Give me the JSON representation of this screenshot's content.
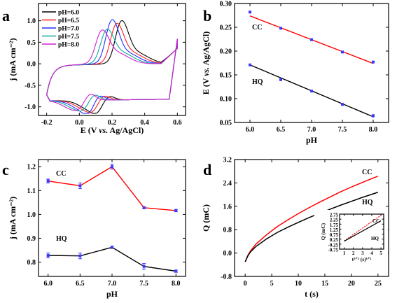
{
  "chart_data": [
    {
      "panel": "a",
      "type": "line",
      "xlabel_parts": [
        "E (V ",
        "vs.",
        " Ag/AgCl)"
      ],
      "ylabel": "j (mA cm⁻²)",
      "xlim": [
        -0.25,
        0.65
      ],
      "ylim": [
        -1.2,
        1.4
      ],
      "xticks": [
        -0.2,
        0.0,
        0.2,
        0.4,
        0.6
      ],
      "yticks": [
        -1.0,
        -0.5,
        0.0,
        0.5,
        1.0
      ],
      "xtick_labels": [
        "-0.2",
        "0.0",
        "0.2",
        "0.4",
        "0.6"
      ],
      "ytick_labels": [
        "-1.0",
        "-0.5",
        "0.0",
        "0.5",
        "1.0"
      ],
      "legend_position": "top-left",
      "grid": false,
      "series": [
        {
          "name": "pH=6.0",
          "color": "#000000",
          "anodic_peaks": [
            [
              0.275,
              1.16
            ],
            [
              0.24,
              1.08
            ]
          ],
          "cathodic_peaks": [
            [
              0.175,
              -0.66
            ],
            [
              0.11,
              -0.95
            ]
          ]
        },
        {
          "name": "pH=6.5",
          "color": "#ff2020",
          "anodic_peaks": [
            [
              0.245,
              1.12
            ],
            [
              0.21,
              1.04
            ]
          ],
          "cathodic_peaks": [
            [
              0.145,
              -0.64
            ],
            [
              0.085,
              -0.92
            ]
          ]
        },
        {
          "name": "pH=7.0",
          "color": "#2030ff",
          "anodic_peaks": [
            [
              0.215,
              1.2
            ],
            [
              0.18,
              1.06
            ]
          ],
          "cathodic_peaks": [
            [
              0.115,
              -0.62
            ],
            [
              0.06,
              -0.98
            ]
          ]
        },
        {
          "name": "pH=7.5",
          "color": "#13a89e",
          "anodic_peaks": [
            [
              0.185,
              1.03
            ],
            [
              0.15,
              0.96
            ]
          ],
          "cathodic_peaks": [
            [
              0.085,
              -0.6
            ],
            [
              0.035,
              -0.88
            ]
          ]
        },
        {
          "name": "pH=8.0",
          "color": "#d020d0",
          "anodic_peaks": [
            [
              0.155,
              1.02
            ],
            [
              0.12,
              0.95
            ]
          ],
          "cathodic_peaks": [
            [
              0.06,
              -0.58
            ],
            [
              0.01,
              -0.86
            ]
          ]
        }
      ]
    },
    {
      "panel": "b",
      "type": "scatter",
      "xlabel": "pH",
      "ylabel_parts": [
        "E (V ",
        "vs.",
        " Ag/AgCl)"
      ],
      "xlim": [
        5.75,
        8.25
      ],
      "ylim": [
        0.05,
        0.3
      ],
      "xticks": [
        6.0,
        6.5,
        7.0,
        7.5,
        8.0
      ],
      "yticks": [
        0.05,
        0.1,
        0.15,
        0.2,
        0.25,
        0.3
      ],
      "xtick_labels": [
        "6.0",
        "6.5",
        "7.0",
        "7.5",
        "8.0"
      ],
      "ytick_labels": [
        "0.05",
        "0.10",
        "0.15",
        "0.20",
        "0.25",
        "0.30"
      ],
      "series": [
        {
          "name": "CC",
          "color": "#3a3aff",
          "fit_color": "#ff0000",
          "x": [
            6.0,
            6.5,
            7.0,
            7.5,
            8.0
          ],
          "y": [
            0.282,
            0.248,
            0.224,
            0.198,
            0.177
          ],
          "err": [
            0.003,
            0.002,
            0.002,
            0.002,
            0.002
          ],
          "fit": [
            [
              6.0,
              0.274
            ],
            [
              8.0,
              0.174
            ]
          ]
        },
        {
          "name": "HQ",
          "color": "#3a3aff",
          "fit_color": "#000000",
          "x": [
            6.0,
            6.5,
            7.0,
            7.5,
            8.0
          ],
          "y": [
            0.171,
            0.14,
            0.116,
            0.088,
            0.064
          ],
          "err": [
            0.002,
            0.003,
            0.002,
            0.002,
            0.004
          ],
          "fit": [
            [
              6.0,
              0.171
            ],
            [
              8.0,
              0.062
            ]
          ]
        }
      ]
    },
    {
      "panel": "c",
      "type": "line",
      "xlabel": "pH",
      "ylabel": "j (mA cm⁻²)",
      "xlim": [
        5.85,
        8.15
      ],
      "ylim": [
        0.74,
        1.23
      ],
      "xticks": [
        6.0,
        6.5,
        7.0,
        7.5,
        8.0
      ],
      "yticks": [
        0.8,
        0.9,
        1.0,
        1.1,
        1.2
      ],
      "xtick_labels": [
        "6.0",
        "6.5",
        "7.0",
        "7.5",
        "8.0"
      ],
      "ytick_labels": [
        "0.8",
        "0.9",
        "1.0",
        "1.1",
        "1.2"
      ],
      "series": [
        {
          "name": "CC",
          "color": "#ff0000",
          "marker_color": "#3a3aff",
          "x": [
            6.0,
            6.5,
            7.0,
            7.5,
            8.0
          ],
          "y": [
            1.14,
            1.12,
            1.2,
            1.028,
            1.016
          ],
          "err": [
            0.008,
            0.012,
            0.01,
            0.004,
            0.005
          ]
        },
        {
          "name": "HQ",
          "color": "#000000",
          "marker_color": "#3a3aff",
          "x": [
            6.0,
            6.5,
            7.0,
            7.5,
            8.0
          ],
          "y": [
            0.828,
            0.826,
            0.862,
            0.782,
            0.762
          ],
          "err": [
            0.01,
            0.012,
            0.005,
            0.012,
            0.005
          ]
        }
      ]
    },
    {
      "panel": "d",
      "type": "line",
      "xlabel": "t (s)",
      "ylabel": "Q (mC)",
      "xlim": [
        -2,
        27
      ],
      "ylim": [
        -0.8,
        3.2
      ],
      "xticks": [
        0,
        5,
        10,
        15,
        20,
        25
      ],
      "yticks": [
        -0.8,
        0.0,
        0.8,
        1.6,
        2.4,
        3.2
      ],
      "xtick_labels": [
        "0",
        "5",
        "10",
        "15",
        "20",
        "25"
      ],
      "ytick_labels": [
        "-0.8",
        "0.0",
        "0.8",
        "1.6",
        "2.4",
        "3.2"
      ],
      "series": [
        {
          "name": "CC",
          "color": "#ff0000",
          "t": [
            0,
            0.5,
            1,
            2,
            4,
            6,
            8,
            10,
            12,
            14,
            16,
            18,
            20,
            22,
            24,
            25
          ],
          "q": [
            -0.3,
            -0.08,
            0.07,
            0.3,
            0.62,
            0.9,
            1.13,
            1.35,
            1.55,
            1.74,
            1.92,
            2.1,
            2.26,
            2.41,
            2.56,
            2.63
          ]
        },
        {
          "name": "HQ",
          "color": "#000000",
          "t": [
            0,
            0.5,
            1,
            2,
            4,
            6,
            8,
            10,
            12,
            14,
            16,
            18,
            20,
            22,
            24,
            25
          ],
          "q": [
            -0.3,
            -0.1,
            0.04,
            0.22,
            0.48,
            0.7,
            0.88,
            1.05,
            1.21,
            1.36,
            1.5,
            1.64,
            1.77,
            1.9,
            2.02,
            2.08
          ]
        }
      ],
      "inset": {
        "xlabel": "t¹ᐟ² (s)¹ᐟ²",
        "ylabel": "Q (mC)",
        "xlim": [
          0.5,
          5.3
        ],
        "ylim": [
          -0.75,
          2.75
        ],
        "xticks": [
          1,
          2,
          3,
          4,
          5
        ],
        "yticks": [
          -0.75,
          -0.25,
          0.25,
          0.75,
          1.25,
          1.75,
          2.25,
          2.75
        ],
        "xtick_labels": [
          "1",
          "2",
          "3",
          "4",
          "5"
        ],
        "ytick_labels": [
          "-0.75",
          "-0.25",
          "0.25",
          "0.75",
          "1.25",
          "1.75",
          "2.25",
          "2.75"
        ],
        "series": [
          {
            "name": "CC",
            "color": "#ff0000",
            "x": [
              1,
              5
            ],
            "y": [
              0.07,
              2.63
            ]
          },
          {
            "name": "HQ",
            "color": "#000000",
            "x": [
              1,
              5
            ],
            "y": [
              0.04,
              2.08
            ]
          }
        ]
      }
    }
  ],
  "panels": [
    "a",
    "b",
    "c",
    "d"
  ]
}
